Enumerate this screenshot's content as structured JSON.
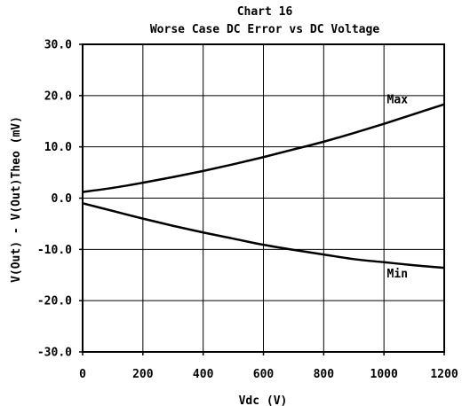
{
  "chart_data": {
    "type": "line",
    "title": "Chart 16",
    "subtitle": "Worse Case DC Error vs DC Voltage",
    "xlabel": "Vdc (V)",
    "ylabel": "V(Out) - V(Out)Theo (mV)",
    "xlim": [
      0,
      1200
    ],
    "ylim": [
      -30,
      30
    ],
    "x_ticks": [
      0,
      200,
      400,
      600,
      800,
      1000,
      1200
    ],
    "x_tick_labels": [
      "0",
      "200",
      "400",
      "600",
      "800",
      "1000",
      "1200"
    ],
    "y_ticks": [
      30,
      20,
      10,
      0,
      -10,
      -20,
      -30
    ],
    "y_tick_labels": [
      "30.0",
      "20.0",
      "10.0",
      "0.0",
      "-10.0",
      "-20.0",
      "-30.0"
    ],
    "grid": true,
    "x": [
      0,
      100,
      200,
      300,
      400,
      500,
      600,
      700,
      800,
      900,
      1000,
      1100,
      1200
    ],
    "series": [
      {
        "name": "Max",
        "values": [
          1.2,
          2.0,
          3.0,
          4.1,
          5.3,
          6.6,
          8.0,
          9.5,
          11.0,
          12.7,
          14.5,
          16.4,
          18.3
        ]
      },
      {
        "name": "Min",
        "values": [
          -1.0,
          -2.5,
          -4.0,
          -5.4,
          -6.7,
          -7.9,
          -9.1,
          -10.1,
          -11.0,
          -11.9,
          -12.5,
          -13.1,
          -13.6
        ]
      }
    ],
    "annotations": [
      {
        "text": "Max",
        "x": 1010,
        "y": 18.5
      },
      {
        "text": "Min",
        "x": 1010,
        "y": -15.5
      }
    ]
  }
}
